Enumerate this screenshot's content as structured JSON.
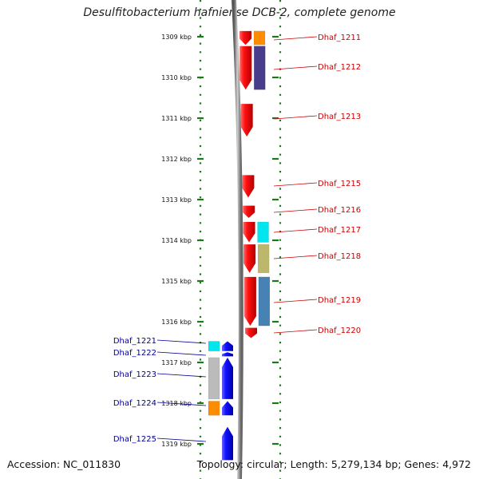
{
  "title": "Desulfitobacterium hafniense DCB-2, complete genome",
  "footer": {
    "accession": "Accession: NC_011830",
    "summary": "Topology: circular; Length: 5,279,134 bp; Genes: 4,972"
  },
  "colors": {
    "forward_cds": "#ee0000",
    "reverse_cds": "#0000ee",
    "forward_label": "#cc0000",
    "reverse_label": "#000099",
    "tick": "#1a7a1a",
    "backbone": "#888888"
  },
  "ruler": {
    "unit": "kbp",
    "ticks": [
      {
        "label": "1309 kbp",
        "kbp": 1309
      },
      {
        "label": "1310 kbp",
        "kbp": 1310
      },
      {
        "label": "1311 kbp",
        "kbp": 1311
      },
      {
        "label": "1312 kbp",
        "kbp": 1312
      },
      {
        "label": "1313 kbp",
        "kbp": 1313
      },
      {
        "label": "1314 kbp",
        "kbp": 1314
      },
      {
        "label": "1315 kbp",
        "kbp": 1315
      },
      {
        "label": "1316 kbp",
        "kbp": 1316
      },
      {
        "label": "1317 kbp",
        "kbp": 1317
      },
      {
        "label": "1318 kbp",
        "kbp": 1318
      },
      {
        "label": "1319 kbp",
        "kbp": 1319
      }
    ]
  },
  "genes": [
    {
      "label": "Dhaf_1211",
      "strand": "+",
      "start_kbp": 1308.86,
      "end_kbp": 1309.2,
      "cog_color": "#ff8c00"
    },
    {
      "label": "Dhaf_1212",
      "strand": "+",
      "start_kbp": 1309.23,
      "end_kbp": 1310.3,
      "cog_color": "#483d8b"
    },
    {
      "label": "Dhaf_1213",
      "strand": "+",
      "start_kbp": 1310.65,
      "end_kbp": 1311.45,
      "cog_color": ""
    },
    {
      "label": "Dhaf_1215",
      "strand": "+",
      "start_kbp": 1312.4,
      "end_kbp": 1312.95,
      "cog_color": ""
    },
    {
      "label": "Dhaf_1216",
      "strand": "+",
      "start_kbp": 1313.15,
      "end_kbp": 1313.45,
      "cog_color": ""
    },
    {
      "label": "Dhaf_1217",
      "strand": "+",
      "start_kbp": 1313.55,
      "end_kbp": 1314.05,
      "cog_color": "#00e5ee"
    },
    {
      "label": "Dhaf_1218",
      "strand": "+",
      "start_kbp": 1314.1,
      "end_kbp": 1314.8,
      "cog_color": "#bdb76b"
    },
    {
      "label": "Dhaf_1219",
      "strand": "+",
      "start_kbp": 1314.9,
      "end_kbp": 1316.1,
      "cog_color": "#4682b4"
    },
    {
      "label": "Dhaf_1220",
      "strand": "+",
      "start_kbp": 1316.15,
      "end_kbp": 1316.4,
      "cog_color": ""
    },
    {
      "label": "Dhaf_1221",
      "strand": "-",
      "start_kbp": 1316.48,
      "end_kbp": 1316.72,
      "cog_color": "#00e5ee"
    },
    {
      "label": "Dhaf_1222",
      "strand": "-",
      "start_kbp": 1316.75,
      "end_kbp": 1316.85,
      "cog_color": ""
    },
    {
      "label": "Dhaf_1223",
      "strand": "-",
      "start_kbp": 1316.88,
      "end_kbp": 1317.9,
      "cog_color": "#bbbbbb"
    },
    {
      "label": "Dhaf_1224",
      "strand": "-",
      "start_kbp": 1317.95,
      "end_kbp": 1318.3,
      "cog_color": "#ff8c00"
    },
    {
      "label": "Dhaf_1225",
      "strand": "-",
      "start_kbp": 1318.58,
      "end_kbp": 1319.4,
      "cog_color": ""
    }
  ]
}
